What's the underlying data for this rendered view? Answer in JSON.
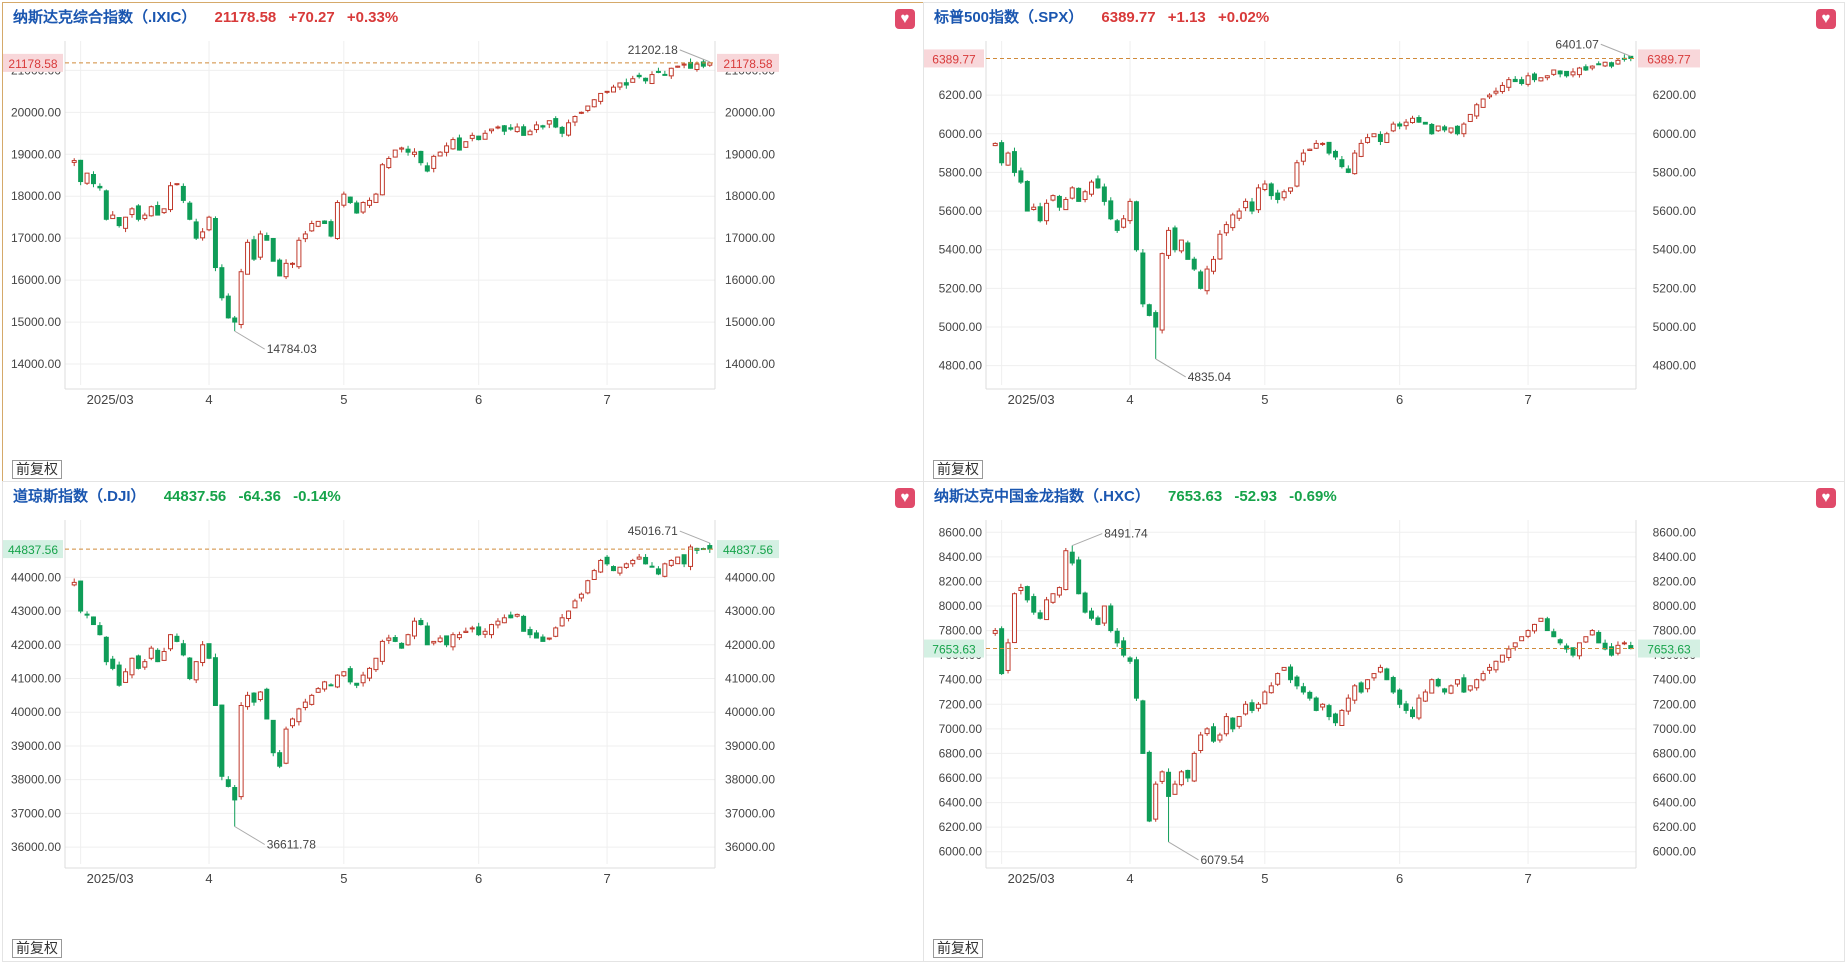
{
  "panels": [
    {
      "title": "纳斯达克综合指数（.IXIC）",
      "price": "21178.58",
      "change": "+70.27",
      "pct": "+0.33%",
      "direction": "up",
      "current_label": "21178.58",
      "high_label": "21202.18",
      "low_label": "14784.03",
      "fq_label": "前复权",
      "chart_data": {
        "type": "candlestick",
        "ylim": [
          13500,
          21700
        ],
        "yticks": [
          {
            "v": 14000,
            "l": "14000.00"
          },
          {
            "v": 15000,
            "l": "15000.00"
          },
          {
            "v": 16000,
            "l": "16000.00"
          },
          {
            "v": 17000,
            "l": "17000.00"
          },
          {
            "v": 18000,
            "l": "18000.00"
          },
          {
            "v": 19000,
            "l": "19000.00"
          },
          {
            "v": 20000,
            "l": "20000.00"
          },
          {
            "v": 21000,
            "l": "21000.00"
          }
        ],
        "xticks": [
          {
            "i": 1,
            "l": "2025/03"
          },
          {
            "i": 21,
            "l": "4"
          },
          {
            "i": 42,
            "l": "5"
          },
          {
            "i": 63,
            "l": "6"
          },
          {
            "i": 83,
            "l": "7"
          }
        ],
        "current": 21178.58,
        "high": {
          "i": 99,
          "v": 21202.18
        },
        "low": {
          "i": 25,
          "v": 14784.03
        },
        "closes": [
          18850,
          18350,
          18550,
          18300,
          18200,
          17450,
          17550,
          17300,
          17500,
          17700,
          17450,
          17550,
          17750,
          17550,
          17700,
          18250,
          18300,
          17900,
          17450,
          17000,
          17150,
          17500,
          16300,
          15580,
          15100,
          15000,
          16200,
          16900,
          16500,
          17100,
          16950,
          16450,
          16100,
          16400,
          16400,
          16950,
          17100,
          17350,
          17400,
          17350,
          17050,
          17850,
          18050,
          17850,
          17600,
          17850,
          17900,
          18050,
          18750,
          18900,
          19100,
          19150,
          19050,
          19050,
          18800,
          18600,
          18950,
          19050,
          19200,
          19350,
          19100,
          19300,
          19450,
          19350,
          19500,
          19600,
          19650,
          19550,
          19600,
          19650,
          19450,
          19550,
          19700,
          19650,
          19800,
          19650,
          19500,
          19750,
          19900,
          20000,
          20150,
          20300,
          20450,
          20500,
          20600,
          20700,
          20650,
          20800,
          20850,
          20750,
          20900,
          20950,
          20900,
          21050,
          21100,
          21150,
          21050,
          21150,
          21100,
          21178.58
        ]
      }
    },
    {
      "title": "标普500指数（.SPX）",
      "price": "6389.77",
      "change": "+1.13",
      "pct": "+0.02%",
      "direction": "up",
      "current_label": "6389.77",
      "high_label": "6401.07",
      "low_label": "4835.04",
      "fq_label": "前复权",
      "chart_data": {
        "type": "candlestick",
        "ylim": [
          4700,
          6480
        ],
        "yticks": [
          {
            "v": 4800,
            "l": "4800.00"
          },
          {
            "v": 5000,
            "l": "5000.00"
          },
          {
            "v": 5200,
            "l": "5200.00"
          },
          {
            "v": 5400,
            "l": "5400.00"
          },
          {
            "v": 5600,
            "l": "5600.00"
          },
          {
            "v": 5800,
            "l": "5800.00"
          },
          {
            "v": 6000,
            "l": "6000.00"
          },
          {
            "v": 6200,
            "l": "6200.00"
          }
        ],
        "xticks": [
          {
            "i": 1,
            "l": "2025/03"
          },
          {
            "i": 21,
            "l": "4"
          },
          {
            "i": 42,
            "l": "5"
          },
          {
            "i": 63,
            "l": "6"
          },
          {
            "i": 83,
            "l": "7"
          }
        ],
        "current": 6389.77,
        "high": {
          "i": 99,
          "v": 6401.07
        },
        "low": {
          "i": 25,
          "v": 4835.04
        },
        "closes": [
          5950,
          5850,
          5900,
          5800,
          5750,
          5600,
          5620,
          5550,
          5640,
          5680,
          5620,
          5660,
          5720,
          5650,
          5700,
          5750,
          5720,
          5650,
          5560,
          5500,
          5560,
          5650,
          5400,
          5120,
          5060,
          5000,
          5380,
          5500,
          5400,
          5450,
          5350,
          5300,
          5200,
          5300,
          5350,
          5480,
          5530,
          5580,
          5600,
          5650,
          5600,
          5720,
          5740,
          5680,
          5660,
          5700,
          5720,
          5850,
          5900,
          5920,
          5950,
          5950,
          5900,
          5880,
          5830,
          5800,
          5900,
          5950,
          5980,
          6000,
          5960,
          6000,
          6050,
          6040,
          6060,
          6080,
          6060,
          6050,
          6000,
          6040,
          6020,
          6030,
          6000,
          6050,
          6100,
          6150,
          6180,
          6200,
          6220,
          6250,
          6280,
          6270,
          6260,
          6300,
          6280,
          6290,
          6300,
          6330,
          6310,
          6300,
          6320,
          6340,
          6330,
          6350,
          6360,
          6370,
          6350,
          6380,
          6390,
          6389.77
        ]
      }
    },
    {
      "title": "道琼斯指数（.DJI）",
      "price": "44837.56",
      "change": "-64.36",
      "pct": "-0.14%",
      "direction": "down",
      "current_label": "44837.56",
      "high_label": "45016.71",
      "low_label": "36611.78",
      "fq_label": "前复权",
      "chart_data": {
        "type": "candlestick",
        "ylim": [
          35500,
          45700
        ],
        "yticks": [
          {
            "v": 36000,
            "l": "36000.00"
          },
          {
            "v": 37000,
            "l": "37000.00"
          },
          {
            "v": 38000,
            "l": "38000.00"
          },
          {
            "v": 39000,
            "l": "39000.00"
          },
          {
            "v": 40000,
            "l": "40000.00"
          },
          {
            "v": 41000,
            "l": "41000.00"
          },
          {
            "v": 42000,
            "l": "42000.00"
          },
          {
            "v": 43000,
            "l": "43000.00"
          },
          {
            "v": 44000,
            "l": "44000.00"
          }
        ],
        "xticks": [
          {
            "i": 1,
            "l": "2025/03"
          },
          {
            "i": 21,
            "l": "4"
          },
          {
            "i": 42,
            "l": "5"
          },
          {
            "i": 63,
            "l": "6"
          },
          {
            "i": 83,
            "l": "7"
          }
        ],
        "current": 44837.56,
        "high": {
          "i": 99,
          "v": 45016.71
        },
        "low": {
          "i": 25,
          "v": 36611.78
        },
        "closes": [
          43850,
          43000,
          42900,
          42600,
          42300,
          41500,
          41300,
          40800,
          41200,
          41600,
          41300,
          41500,
          41900,
          41500,
          41800,
          42300,
          42100,
          41700,
          41000,
          41500,
          42000,
          41600,
          40200,
          38100,
          37800,
          37400,
          40200,
          40500,
          40300,
          40600,
          39800,
          38800,
          38400,
          39500,
          39800,
          40100,
          40300,
          40500,
          40700,
          40900,
          40800,
          41100,
          41200,
          40900,
          40800,
          41100,
          41300,
          41600,
          42100,
          42200,
          42100,
          41900,
          42300,
          42700,
          42600,
          42000,
          42100,
          42200,
          42000,
          42300,
          42300,
          42400,
          42500,
          42300,
          42400,
          42600,
          42700,
          42800,
          42800,
          42900,
          42400,
          42300,
          42200,
          42100,
          42200,
          42500,
          42800,
          43000,
          43300,
          43500,
          43900,
          44200,
          44500,
          44400,
          44200,
          44300,
          44400,
          44500,
          44600,
          44400,
          44300,
          44100,
          44400,
          44500,
          44600,
          44400,
          44900,
          44800,
          44850,
          44837.56
        ]
      }
    },
    {
      "title": "纳斯达克中国金龙指数（.HXC）",
      "price": "7653.63",
      "change": "-52.93",
      "pct": "-0.69%",
      "direction": "down",
      "current_label": "7653.63",
      "high_label": "8491.74",
      "low_label": "6079.54",
      "fq_label": "前复权",
      "chart_data": {
        "type": "candlestick",
        "ylim": [
          5900,
          8700
        ],
        "yticks": [
          {
            "v": 6000,
            "l": "6000.00"
          },
          {
            "v": 6200,
            "l": "6200.00"
          },
          {
            "v": 6400,
            "l": "6400.00"
          },
          {
            "v": 6600,
            "l": "6600.00"
          },
          {
            "v": 6800,
            "l": "6800.00"
          },
          {
            "v": 7000,
            "l": "7000.00"
          },
          {
            "v": 7200,
            "l": "7200.00"
          },
          {
            "v": 7400,
            "l": "7400.00"
          },
          {
            "v": 7600,
            "l": "7600.00"
          },
          {
            "v": 7800,
            "l": "7800.00"
          },
          {
            "v": 8000,
            "l": "8000.00"
          },
          {
            "v": 8200,
            "l": "8200.00"
          },
          {
            "v": 8400,
            "l": "8400.00"
          },
          {
            "v": 8600,
            "l": "8600.00"
          }
        ],
        "xticks": [
          {
            "i": 1,
            "l": "2025/03"
          },
          {
            "i": 21,
            "l": "4"
          },
          {
            "i": 42,
            "l": "5"
          },
          {
            "i": 63,
            "l": "6"
          },
          {
            "i": 83,
            "l": "7"
          }
        ],
        "current": 7653.63,
        "high": {
          "i": 12,
          "v": 8491.74
        },
        "low": {
          "i": 27,
          "v": 6079.54
        },
        "closes": [
          7800,
          7450,
          7700,
          8100,
          8150,
          8050,
          7950,
          7900,
          8050,
          8100,
          8150,
          8450,
          8350,
          8100,
          7950,
          7900,
          7850,
          8000,
          7800,
          7700,
          7600,
          7550,
          7250,
          6800,
          6250,
          6550,
          6650,
          6450,
          6550,
          6650,
          6600,
          6800,
          6950,
          7000,
          6900,
          6950,
          7100,
          7000,
          7100,
          7200,
          7150,
          7200,
          7300,
          7350,
          7450,
          7500,
          7400,
          7350,
          7300,
          7250,
          7150,
          7200,
          7100,
          7050,
          7150,
          7250,
          7350,
          7300,
          7400,
          7450,
          7500,
          7400,
          7300,
          7200,
          7150,
          7100,
          7250,
          7300,
          7400,
          7350,
          7300,
          7350,
          7400,
          7300,
          7350,
          7400,
          7450,
          7500,
          7550,
          7600,
          7650,
          7700,
          7750,
          7800,
          7850,
          7900,
          7800,
          7750,
          7700,
          7650,
          7600,
          7700,
          7750,
          7800,
          7700,
          7650,
          7600,
          7680,
          7700,
          7653.63
        ]
      }
    }
  ],
  "colors": {
    "up": "#c0392b",
    "down": "#0f9d58",
    "up_text": "#d83a3a",
    "down_text": "#16a34a",
    "grid": "#efefef",
    "axis_text": "#444444",
    "guide": "#d08a3a",
    "label_up_bg": "#f8d7da",
    "label_down_bg": "#d4f0e3"
  }
}
